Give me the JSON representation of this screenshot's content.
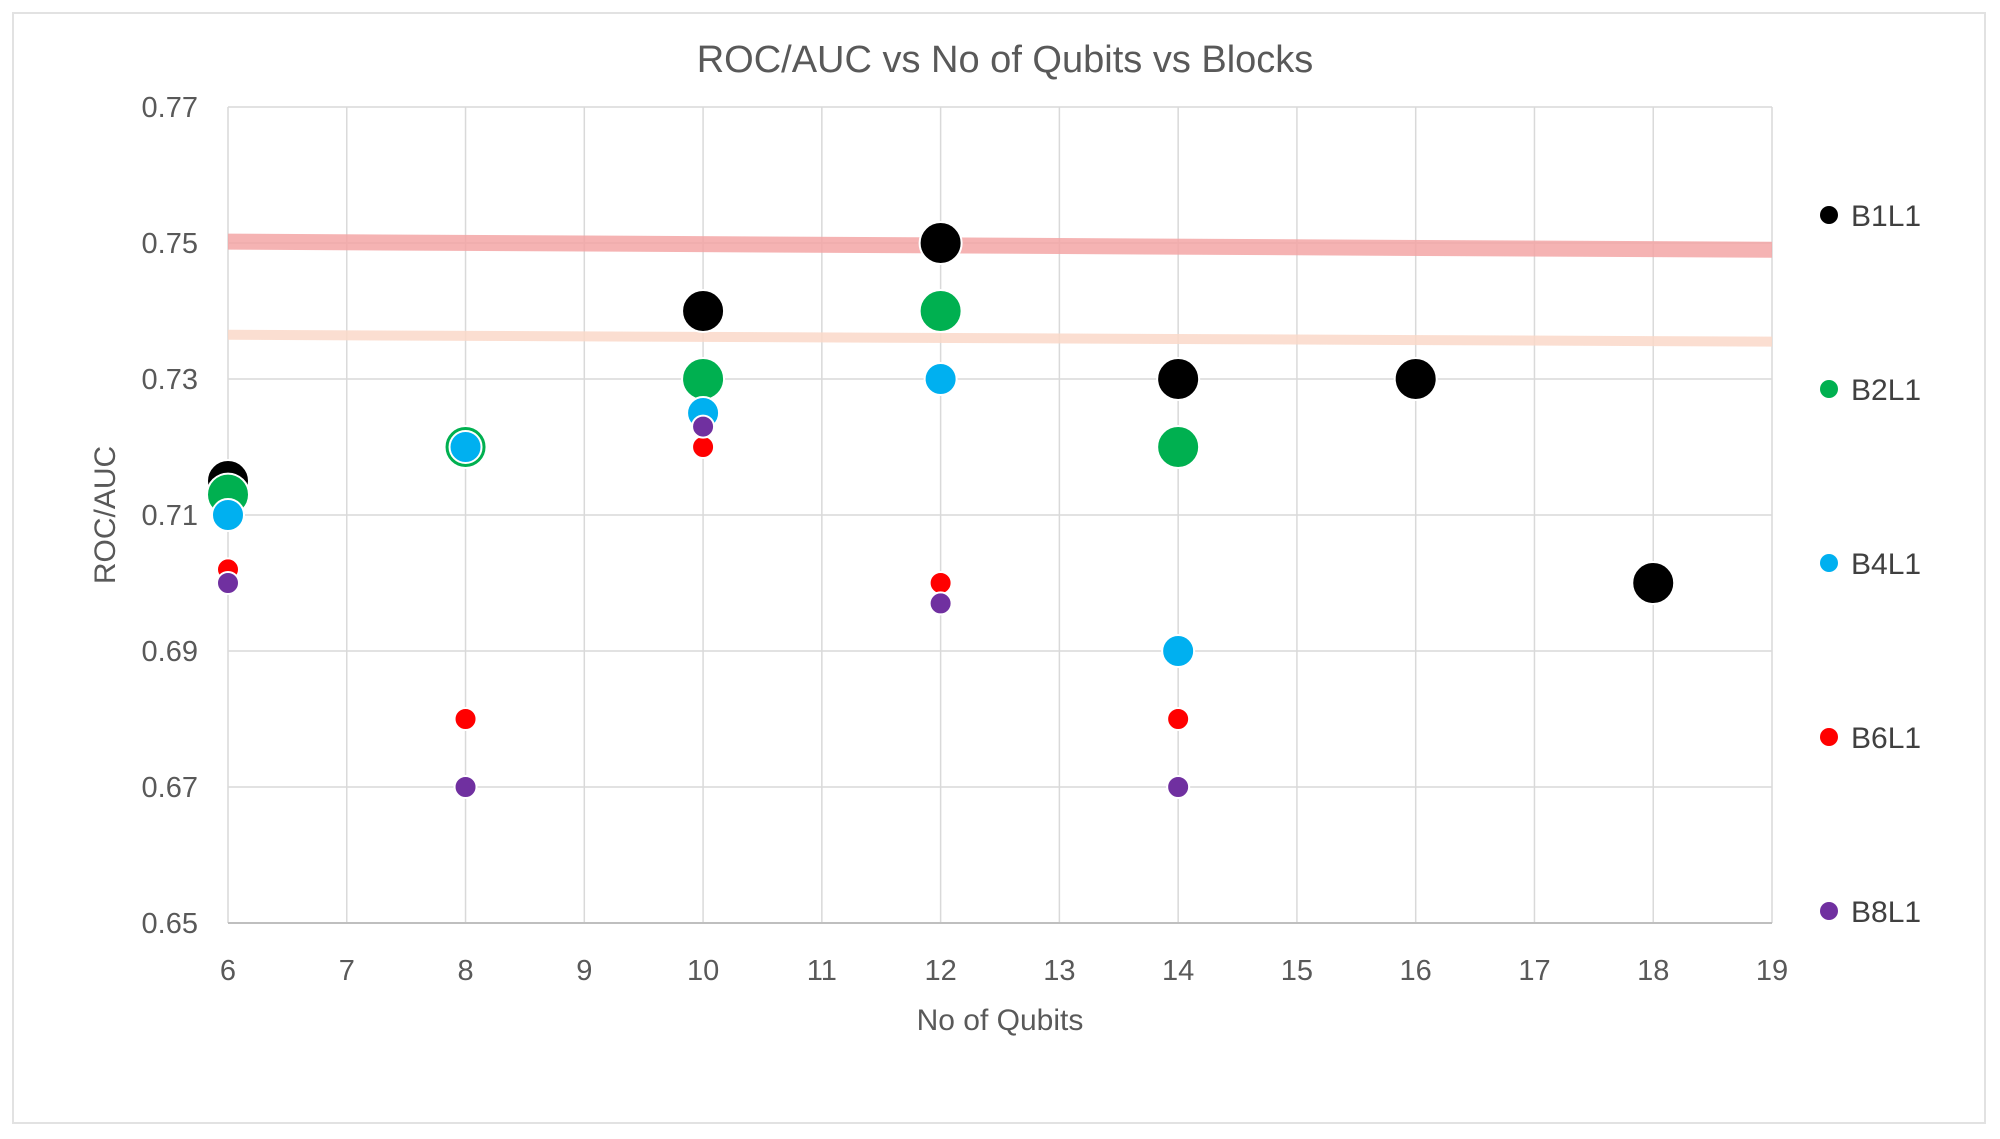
{
  "chart_data": {
    "type": "scatter",
    "title": "ROC/AUC vs No of Qubits vs Blocks",
    "xlabel": "No of Qubits",
    "ylabel": "ROC/AUC",
    "xlim": [
      6,
      19
    ],
    "ylim": [
      0.65,
      0.77
    ],
    "xticks": [
      "6",
      "7",
      "8",
      "9",
      "10",
      "11",
      "12",
      "13",
      "14",
      "15",
      "16",
      "17",
      "18",
      "19"
    ],
    "yticks": [
      "0.65",
      "0.67",
      "0.69",
      "0.71",
      "0.73",
      "0.75",
      "0.77"
    ],
    "grid": true,
    "legend_position": "right",
    "series": [
      {
        "name": "B1L1",
        "color": "#000000",
        "marker_size": "large",
        "points": [
          [
            6,
            0.715
          ],
          [
            8,
            0.72
          ],
          [
            10,
            0.74
          ],
          [
            12,
            0.75
          ],
          [
            14,
            0.73
          ],
          [
            16,
            0.73
          ],
          [
            18,
            0.7
          ]
        ]
      },
      {
        "name": "B2L1",
        "color": "#00b050",
        "marker_size": "large",
        "points": [
          [
            6,
            0.713
          ],
          [
            8,
            0.72
          ],
          [
            10,
            0.73
          ],
          [
            12,
            0.74
          ],
          [
            14,
            0.72
          ]
        ]
      },
      {
        "name": "B4L1",
        "color": "#00b0f0",
        "marker_size": "medium",
        "points": [
          [
            6,
            0.71
          ],
          [
            8,
            0.72
          ],
          [
            10,
            0.725
          ],
          [
            12,
            0.73
          ],
          [
            14,
            0.69
          ]
        ]
      },
      {
        "name": "B6L1",
        "color": "#ff0000",
        "marker_size": "small",
        "points": [
          [
            6,
            0.702
          ],
          [
            8,
            0.68
          ],
          [
            10,
            0.72
          ],
          [
            12,
            0.7
          ],
          [
            14,
            0.68
          ]
        ]
      },
      {
        "name": "B8L1",
        "color": "#7030a0",
        "marker_size": "small",
        "points": [
          [
            6,
            0.7
          ],
          [
            8,
            0.67
          ],
          [
            10,
            0.723
          ],
          [
            12,
            0.697
          ],
          [
            14,
            0.67
          ]
        ]
      }
    ],
    "reference_lines": [
      {
        "from": [
          6,
          0.7502
        ],
        "to": [
          19,
          0.749
        ],
        "color": "#f4a6a6"
      },
      {
        "from": [
          6,
          0.7365
        ],
        "to": [
          19,
          0.7355
        ],
        "color": "#fbd9c9"
      }
    ]
  }
}
